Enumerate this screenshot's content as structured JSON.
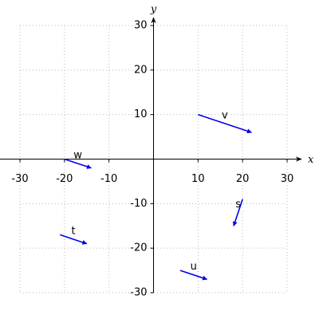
{
  "chart_data": {
    "type": "vector",
    "x_label": "x",
    "y_label": "y",
    "xlim": [
      -30,
      30
    ],
    "ylim": [
      -30,
      30
    ],
    "xticks": [
      -30,
      -20,
      -10,
      10,
      20,
      30
    ],
    "yticks": [
      -30,
      -20,
      -10,
      10,
      20,
      30
    ],
    "grid": true,
    "arrow_color": "#0000ee",
    "label_color": "#ee0000",
    "vectors": [
      {
        "name": "v",
        "x0": 10,
        "y0": 10,
        "x1": 22,
        "y1": 6
      },
      {
        "name": "w",
        "x0": -20,
        "y0": 0,
        "x1": -14,
        "y1": -2
      },
      {
        "name": "s",
        "x0": 20,
        "y0": -9,
        "x1": 18,
        "y1": -15
      },
      {
        "name": "t",
        "x0": -21,
        "y0": -17,
        "x1": -15,
        "y1": -19
      },
      {
        "name": "u",
        "x0": 6,
        "y0": -25,
        "x1": 12,
        "y1": -27
      }
    ]
  }
}
